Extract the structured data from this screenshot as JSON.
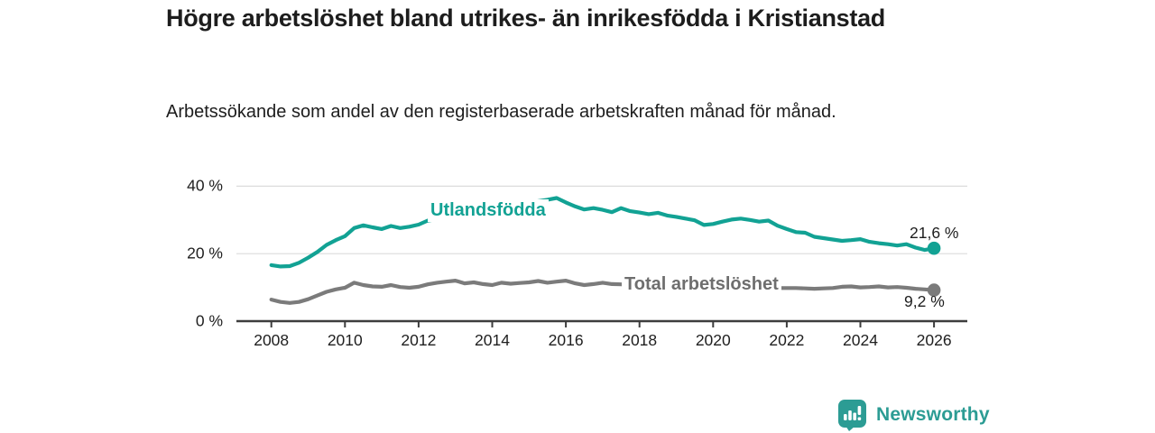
{
  "header": {
    "title": "Högre arbetslöshet bland utrikes- än inrikesfödda i Kristianstad",
    "subtitle": "Arbetssökande som andel av den registerbaserade arbetskraften månad för månad."
  },
  "colors": {
    "accent_teal": "#12a294",
    "line_gray": "#7b7b7b",
    "label_gray": "#6e6e6e",
    "axis": "#3d3d3d",
    "grid": "#dcdcdc",
    "text_dark": "#1d1d1d",
    "brand_teal": "#2c9c94",
    "background": "#ffffff"
  },
  "chart_data": {
    "type": "line",
    "title": "Högre arbetslöshet bland utrikes- än inrikesfödda i Kristianstad",
    "subtitle": "Arbetssökande som andel av den registerbaserade arbetskraften månad för månad.",
    "xlabel": "",
    "ylabel": "",
    "x_range": [
      2007.4,
      2026.9
    ],
    "ylim": [
      0,
      40
    ],
    "grid": "horizontal",
    "legend_position": "inline-labels",
    "x_ticks": [
      2008,
      2010,
      2012,
      2014,
      2016,
      2018,
      2020,
      2022,
      2024,
      2026
    ],
    "y_ticks": [
      {
        "label": "0 %",
        "value": 0
      },
      {
        "label": "20 %",
        "value": 20
      },
      {
        "label": "40 %",
        "value": 40
      }
    ],
    "series": [
      {
        "id": "utlandsfodda",
        "name": "Utlandsfödda",
        "color": "#12a294",
        "end_value": 21.6,
        "end_label": "21,6 %",
        "points": [
          [
            2008.0,
            16.6
          ],
          [
            2008.25,
            16.2
          ],
          [
            2008.5,
            16.3
          ],
          [
            2008.75,
            17.3
          ],
          [
            2009.0,
            18.8
          ],
          [
            2009.25,
            20.5
          ],
          [
            2009.5,
            22.6
          ],
          [
            2009.75,
            24.0
          ],
          [
            2010.0,
            25.2
          ],
          [
            2010.25,
            27.6
          ],
          [
            2010.5,
            28.4
          ],
          [
            2010.75,
            27.8
          ],
          [
            2011.0,
            27.3
          ],
          [
            2011.25,
            28.2
          ],
          [
            2011.5,
            27.6
          ],
          [
            2011.75,
            28.0
          ],
          [
            2012.0,
            28.6
          ],
          [
            2012.25,
            29.8
          ],
          [
            2012.5,
            30.2
          ],
          [
            2012.75,
            30.6
          ],
          [
            2013.0,
            31.0
          ],
          [
            2013.25,
            31.5
          ],
          [
            2013.5,
            32.0
          ],
          [
            2013.75,
            32.6
          ],
          [
            2014.0,
            33.2
          ],
          [
            2014.25,
            33.8
          ],
          [
            2014.5,
            34.3
          ],
          [
            2014.75,
            34.8
          ],
          [
            2015.0,
            35.2
          ],
          [
            2015.25,
            35.6
          ],
          [
            2015.5,
            36.0
          ],
          [
            2015.75,
            36.5
          ],
          [
            2016.0,
            35.2
          ],
          [
            2016.25,
            34.0
          ],
          [
            2016.5,
            33.1
          ],
          [
            2016.75,
            33.5
          ],
          [
            2017.0,
            33.0
          ],
          [
            2017.25,
            32.3
          ],
          [
            2017.5,
            33.5
          ],
          [
            2017.75,
            32.6
          ],
          [
            2018.0,
            32.2
          ],
          [
            2018.25,
            31.7
          ],
          [
            2018.5,
            32.1
          ],
          [
            2018.75,
            31.3
          ],
          [
            2019.0,
            30.9
          ],
          [
            2019.25,
            30.4
          ],
          [
            2019.5,
            29.9
          ],
          [
            2019.75,
            28.5
          ],
          [
            2020.0,
            28.8
          ],
          [
            2020.25,
            29.5
          ],
          [
            2020.5,
            30.1
          ],
          [
            2020.75,
            30.4
          ],
          [
            2021.0,
            30.0
          ],
          [
            2021.25,
            29.5
          ],
          [
            2021.5,
            29.8
          ],
          [
            2021.75,
            28.3
          ],
          [
            2022.0,
            27.3
          ],
          [
            2022.25,
            26.4
          ],
          [
            2022.5,
            26.2
          ],
          [
            2022.75,
            25.0
          ],
          [
            2023.0,
            24.6
          ],
          [
            2023.25,
            24.2
          ],
          [
            2023.5,
            23.8
          ],
          [
            2023.75,
            24.0
          ],
          [
            2024.0,
            24.3
          ],
          [
            2024.25,
            23.5
          ],
          [
            2024.5,
            23.1
          ],
          [
            2024.75,
            22.8
          ],
          [
            2025.0,
            22.4
          ],
          [
            2025.25,
            22.8
          ],
          [
            2025.5,
            21.8
          ],
          [
            2025.75,
            21.1
          ],
          [
            2026.0,
            21.6
          ]
        ]
      },
      {
        "id": "total-arbetsloshet",
        "name": "Total arbetslöshet",
        "color": "#7b7b7b",
        "end_value": 9.2,
        "end_label": "9,2 %",
        "points": [
          [
            2008.0,
            6.4
          ],
          [
            2008.25,
            5.7
          ],
          [
            2008.5,
            5.4
          ],
          [
            2008.75,
            5.7
          ],
          [
            2009.0,
            6.5
          ],
          [
            2009.25,
            7.6
          ],
          [
            2009.5,
            8.7
          ],
          [
            2009.75,
            9.4
          ],
          [
            2010.0,
            9.9
          ],
          [
            2010.25,
            11.4
          ],
          [
            2010.5,
            10.7
          ],
          [
            2010.75,
            10.3
          ],
          [
            2011.0,
            10.2
          ],
          [
            2011.25,
            10.7
          ],
          [
            2011.5,
            10.1
          ],
          [
            2011.75,
            9.9
          ],
          [
            2012.0,
            10.2
          ],
          [
            2012.25,
            10.9
          ],
          [
            2012.5,
            11.4
          ],
          [
            2012.75,
            11.7
          ],
          [
            2013.0,
            12.0
          ],
          [
            2013.25,
            11.2
          ],
          [
            2013.5,
            11.5
          ],
          [
            2013.75,
            11.0
          ],
          [
            2014.0,
            10.7
          ],
          [
            2014.25,
            11.4
          ],
          [
            2014.5,
            11.1
          ],
          [
            2014.75,
            11.3
          ],
          [
            2015.0,
            11.5
          ],
          [
            2015.25,
            11.9
          ],
          [
            2015.5,
            11.4
          ],
          [
            2015.75,
            11.7
          ],
          [
            2016.0,
            12.0
          ],
          [
            2016.25,
            11.2
          ],
          [
            2016.5,
            10.7
          ],
          [
            2016.75,
            11.0
          ],
          [
            2017.0,
            11.4
          ],
          [
            2017.25,
            11.0
          ],
          [
            2017.5,
            10.9
          ],
          [
            2017.75,
            10.7
          ],
          [
            2018.0,
            10.5
          ],
          [
            2018.25,
            10.3
          ],
          [
            2018.5,
            10.2
          ],
          [
            2018.75,
            10.0
          ],
          [
            2019.0,
            9.9
          ],
          [
            2019.25,
            9.8
          ],
          [
            2019.5,
            9.7
          ],
          [
            2019.75,
            9.9
          ],
          [
            2020.0,
            10.4
          ],
          [
            2020.25,
            10.7
          ],
          [
            2020.5,
            10.6
          ],
          [
            2020.75,
            10.4
          ],
          [
            2021.0,
            10.2
          ],
          [
            2021.25,
            10.0
          ],
          [
            2021.5,
            9.9
          ],
          [
            2021.75,
            9.8
          ],
          [
            2022.0,
            9.8
          ],
          [
            2022.25,
            9.8
          ],
          [
            2022.5,
            9.7
          ],
          [
            2022.75,
            9.6
          ],
          [
            2023.0,
            9.7
          ],
          [
            2023.25,
            9.8
          ],
          [
            2023.5,
            10.2
          ],
          [
            2023.75,
            10.3
          ],
          [
            2024.0,
            10.0
          ],
          [
            2024.25,
            10.1
          ],
          [
            2024.5,
            10.3
          ],
          [
            2024.75,
            10.0
          ],
          [
            2025.0,
            10.1
          ],
          [
            2025.25,
            9.9
          ],
          [
            2025.5,
            9.6
          ],
          [
            2025.75,
            9.4
          ],
          [
            2026.0,
            9.2
          ]
        ]
      }
    ]
  },
  "footer": {
    "brand": "Newsworthy",
    "logo_icon": "bar-chart-speech-bubble"
  }
}
